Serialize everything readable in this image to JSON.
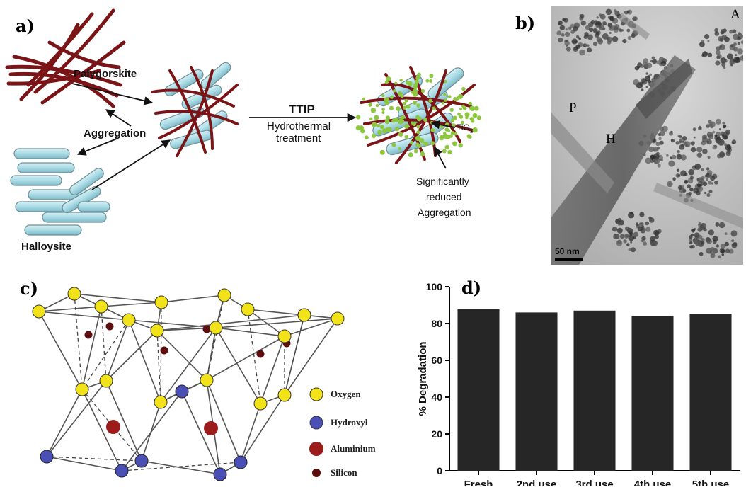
{
  "panel_a": {
    "label": "a)",
    "palygorskite": "Palygorskite",
    "aggregation": "Aggregation",
    "halloysite": "Halloysite",
    "ttip": "TTIP",
    "hydro1": "Hydrothermal",
    "hydro2": "treatment",
    "tio2_main": "TiO",
    "tio2_sub": "2",
    "reduced1": "Significantly",
    "reduced2": "reduced",
    "reduced3": "Aggregation",
    "colors": {
      "rod": "#7a1416",
      "tube": "#a9dbe5",
      "tio2": "#8dc63f"
    }
  },
  "panel_b": {
    "label": "b)",
    "corner": "A",
    "p": "P",
    "h": "H",
    "scalebar": "50 nm"
  },
  "panel_c": {
    "label": "c)",
    "legend": [
      {
        "name": "Oxygen",
        "color": "#f2e21a",
        "icon": "oxygen-dot"
      },
      {
        "name": "Hydroxyl",
        "color": "#4a4fb5",
        "icon": "hydroxyl-dot"
      },
      {
        "name": "Aluminium",
        "color": "#9c1c1c",
        "icon": "aluminium-dot"
      },
      {
        "name": "Silicon",
        "color": "#5c0e0e",
        "icon": "silicon-dot"
      }
    ]
  },
  "panel_d": {
    "label": "d)"
  },
  "chart_data": {
    "type": "bar",
    "categories": [
      "Fresh",
      "2nd use",
      "3rd use",
      "4th use",
      "5th use"
    ],
    "values": [
      88,
      86,
      87,
      84,
      85
    ],
    "ylabel": "% Degradation",
    "xlabel": "",
    "ylim": [
      0,
      100
    ],
    "yticks": [
      0,
      20,
      40,
      60,
      80,
      100
    ],
    "bar_color": "#262626",
    "grid": false
  }
}
